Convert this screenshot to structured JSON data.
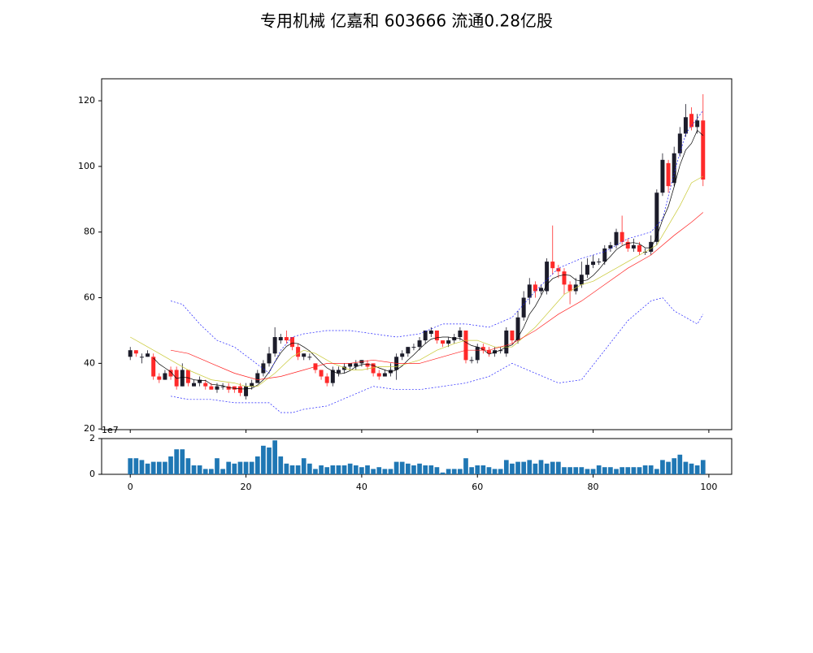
{
  "chart_data": {
    "type": "candlestick",
    "title": "专用机械 亿嘉和 603666 流通0.28亿股",
    "x": [
      0,
      1,
      2,
      3,
      4,
      5,
      6,
      7,
      8,
      9,
      10,
      11,
      12,
      13,
      14,
      15,
      16,
      17,
      18,
      19,
      20,
      21,
      22,
      23,
      24,
      25,
      26,
      27,
      28,
      29,
      30,
      31,
      32,
      33,
      34,
      35,
      36,
      37,
      38,
      39,
      40,
      41,
      42,
      43,
      44,
      45,
      46,
      47,
      48,
      49,
      50,
      51,
      52,
      53,
      54,
      55,
      56,
      57,
      58,
      59,
      60,
      61,
      62,
      63,
      64,
      65,
      66,
      67,
      68,
      69,
      70,
      71,
      72,
      73,
      74,
      75,
      76,
      77,
      78,
      79,
      80,
      81,
      82,
      83,
      84,
      85,
      86,
      87,
      88,
      89,
      90,
      91,
      92,
      93,
      94,
      95,
      96,
      97,
      98,
      99
    ],
    "open": [
      42,
      44,
      42,
      42,
      42,
      36,
      35,
      38,
      38,
      33,
      38,
      33,
      34,
      34,
      33,
      32,
      33,
      33,
      33,
      33,
      30,
      33,
      34,
      37,
      40,
      43,
      47,
      48,
      48,
      45,
      42,
      42,
      40,
      38,
      36,
      34,
      37,
      38,
      39,
      39,
      40,
      40,
      40,
      37,
      36,
      37,
      38,
      42,
      43,
      45,
      45,
      47,
      49,
      50,
      47,
      46,
      47,
      48,
      50,
      41,
      41,
      45,
      44,
      43,
      44,
      43,
      50,
      47,
      54,
      60,
      64,
      62,
      62,
      71,
      69,
      68,
      64,
      62,
      64,
      67,
      70,
      71,
      71,
      75,
      76,
      80,
      77,
      75,
      76,
      74,
      74,
      77,
      92,
      101,
      95,
      104,
      110,
      116,
      112,
      114
    ],
    "high": [
      45,
      44,
      43,
      44,
      43,
      37,
      38,
      39,
      39,
      40,
      38,
      35,
      36,
      35,
      34,
      34,
      34,
      34,
      33,
      34,
      34,
      35,
      38,
      41,
      45,
      51,
      49,
      50,
      48,
      46,
      43,
      43,
      40,
      38,
      37,
      39,
      39,
      40,
      40,
      41,
      41,
      41,
      40,
      38,
      38,
      40,
      43,
      44,
      45,
      46,
      48,
      50,
      51,
      50,
      47,
      48,
      49,
      51,
      50,
      42,
      46,
      46,
      45,
      45,
      45,
      51,
      50,
      56,
      62,
      66,
      65,
      64,
      72,
      82,
      70,
      69,
      65,
      66,
      71,
      72,
      73,
      72,
      76,
      77,
      81,
      85,
      78,
      78,
      77,
      75,
      79,
      93,
      104,
      102,
      106,
      112,
      119,
      118,
      116,
      122
    ],
    "low": [
      41,
      42,
      40,
      42,
      35,
      34,
      35,
      35,
      32,
      33,
      33,
      33,
      33,
      32,
      32,
      31,
      32,
      31,
      31,
      30,
      29,
      32,
      34,
      36,
      39,
      42,
      46,
      46,
      44,
      41,
      41,
      41,
      37,
      35,
      33,
      33,
      36,
      37,
      38,
      38,
      39,
      38,
      36,
      35,
      36,
      36,
      35,
      41,
      42,
      44,
      44,
      46,
      48,
      46,
      45,
      45,
      46,
      47,
      40,
      40,
      40,
      43,
      42,
      42,
      43,
      42,
      46,
      46,
      53,
      58,
      60,
      61,
      61,
      67,
      66,
      61,
      58,
      61,
      63,
      66,
      69,
      70,
      70,
      74,
      75,
      76,
      74,
      74,
      73,
      73,
      73,
      76,
      91,
      92,
      94,
      103,
      109,
      111,
      110,
      94
    ],
    "close": [
      44,
      43,
      42,
      43,
      36,
      35,
      37,
      36,
      33,
      38,
      34,
      34,
      35,
      33,
      32,
      33,
      33,
      32,
      32,
      31,
      33,
      34,
      37,
      40,
      43,
      48,
      48,
      47,
      45,
      42,
      43,
      42,
      38,
      36,
      34,
      38,
      38,
      39,
      40,
      40,
      41,
      39,
      37,
      36,
      37,
      38,
      42,
      43,
      45,
      45,
      47,
      50,
      50,
      47,
      46,
      47,
      48,
      50,
      41,
      41,
      45,
      44,
      43,
      44,
      44,
      50,
      47,
      54,
      60,
      64,
      62,
      63,
      71,
      69,
      68,
      64,
      62,
      64,
      67,
      70,
      71,
      71,
      75,
      76,
      80,
      77,
      75,
      76,
      74,
      74,
      77,
      92,
      102,
      94,
      104,
      110,
      115,
      112,
      114,
      96
    ],
    "up_color": "#1c1c2a",
    "down_color": "#ff2a2a",
    "xlim": [
      -4.95,
      103.95
    ],
    "xticks": [
      0,
      20,
      40,
      60,
      80,
      100
    ],
    "ylim": [
      19.8,
      126.7
    ],
    "yticks": [
      20,
      40,
      60,
      80,
      100,
      120
    ],
    "lines": [
      {
        "color": "#000000",
        "dashed": false,
        "values": [
          null,
          null,
          null,
          null,
          41.6,
          39.8,
          38.6,
          37.4,
          35.4,
          35.8,
          35.6,
          35,
          34.8,
          34.8,
          33.6,
          33.4,
          33.2,
          32.6,
          32.4,
          32.2,
          32.2,
          32.4,
          33.4,
          35,
          37.4,
          40.4,
          43.2,
          45.2,
          46.2,
          46,
          45,
          43.8,
          42,
          40.2,
          38.6,
          37.6,
          36.8,
          37,
          37.8,
          39,
          39.6,
          39.8,
          39.4,
          38.6,
          38,
          37.4,
          38,
          39.2,
          41,
          42.6,
          44.4,
          46,
          47.4,
          47.8,
          48,
          48,
          47.6,
          47.6,
          46.4,
          45.4,
          45,
          44.2,
          42.8,
          43.4,
          44,
          45,
          45.6,
          47.8,
          51,
          55,
          57.4,
          60.6,
          64,
          65.8,
          66.6,
          67,
          66.8,
          65.4,
          65,
          65.4,
          66.8,
          68.6,
          70.8,
          72.6,
          74.6,
          75.8,
          76.6,
          76.8,
          76.4,
          75.2,
          75.2,
          78.6,
          83.8,
          87.8,
          93.8,
          100.4,
          105,
          107,
          111,
          109.4
        ]
      },
      {
        "color": "#c8c832",
        "dashed": false,
        "x": [
          0,
          2,
          5,
          8,
          10,
          14,
          18,
          20,
          22,
          25,
          28,
          30,
          32,
          35,
          38,
          40,
          43,
          46,
          50,
          53,
          56,
          58,
          60,
          63,
          66,
          68,
          70,
          72,
          75,
          78,
          80,
          83,
          86,
          89,
          91,
          93,
          95,
          97,
          99
        ],
        "values": [
          48,
          46,
          43,
          40,
          38,
          35,
          34,
          33,
          33,
          37,
          42,
          44,
          43,
          40,
          38,
          38,
          39,
          39,
          41,
          44,
          46,
          47,
          47,
          45,
          45,
          48,
          51,
          55,
          61,
          64,
          65,
          68,
          71,
          74,
          76,
          82,
          88,
          95,
          97
        ]
      },
      {
        "color": "#ff2020",
        "dashed": false,
        "x": [
          7,
          10,
          14,
          18,
          22,
          26,
          30,
          34,
          38,
          42,
          46,
          50,
          54,
          58,
          62,
          66,
          70,
          74,
          78,
          82,
          86,
          90,
          94,
          97,
          99
        ],
        "values": [
          44,
          43,
          40,
          37,
          35,
          36,
          38,
          40,
          40,
          41,
          40,
          40,
          42,
          44,
          44,
          46,
          50,
          55,
          59,
          64,
          69,
          73,
          79,
          83,
          86
        ]
      },
      {
        "color": "#2020ff",
        "dashed": true,
        "x": [
          7,
          9,
          12,
          15,
          18,
          21,
          24,
          26,
          28,
          30,
          34,
          38,
          42,
          46,
          50,
          54,
          58,
          62,
          66,
          70,
          74,
          78,
          82,
          86,
          90,
          92,
          94,
          96,
          99
        ],
        "values": [
          59,
          58,
          52,
          47,
          45,
          41,
          37,
          44,
          48,
          49,
          50,
          50,
          49,
          48,
          49,
          52,
          52,
          51,
          54,
          62,
          69,
          72,
          74,
          78,
          80,
          84,
          98,
          110,
          117
        ]
      },
      {
        "color": "#2020ff",
        "dashed": true,
        "x": [
          7,
          10,
          14,
          18,
          21,
          24,
          26,
          28,
          30,
          34,
          38,
          42,
          46,
          50,
          54,
          58,
          62,
          66,
          70,
          74,
          78,
          82,
          86,
          90,
          92,
          94,
          96,
          98,
          99
        ],
        "values": [
          30,
          29,
          29,
          28,
          28,
          28,
          25,
          25,
          26,
          27,
          30,
          33,
          32,
          32,
          33,
          34,
          36,
          40,
          37,
          34,
          35,
          44,
          53,
          59,
          60,
          56,
          54,
          52,
          55
        ]
      }
    ],
    "volume": {
      "color": "#1f77b4",
      "ylim": [
        0,
        20000000
      ],
      "yticks": [
        0,
        {
          "value": 20000000,
          "label": "2"
        }
      ],
      "offset_text": "1e7",
      "values": [
        9000000,
        9000000,
        8000000,
        6000000,
        7000000,
        7000000,
        7000000,
        10000000,
        14000000,
        14000000,
        9000000,
        5000000,
        5000000,
        3000000,
        3000000,
        9000000,
        3000000,
        7000000,
        6000000,
        7000000,
        7000000,
        7000000,
        10000000,
        16000000,
        15000000,
        19000000,
        10000000,
        6000000,
        5000000,
        5000000,
        9000000,
        6000000,
        3000000,
        5000000,
        4000000,
        5000000,
        5000000,
        5000000,
        6000000,
        5000000,
        4000000,
        5000000,
        3000000,
        4000000,
        3000000,
        3000000,
        7000000,
        7000000,
        6000000,
        5000000,
        6000000,
        5000000,
        5000000,
        4000000,
        1000000,
        3000000,
        3000000,
        3000000,
        9000000,
        4000000,
        5000000,
        5000000,
        4000000,
        3000000,
        3000000,
        8000000,
        6000000,
        7000000,
        7000000,
        8000000,
        6000000,
        8000000,
        6000000,
        7000000,
        7000000,
        4000000,
        4000000,
        4000000,
        4000000,
        3000000,
        3000000,
        5000000,
        4000000,
        4000000,
        3000000,
        4000000,
        4000000,
        4000000,
        4000000,
        5000000,
        5000000,
        3000000,
        8000000,
        7000000,
        9000000,
        11000000,
        7000000,
        6000000,
        5000000,
        8000000
      ]
    }
  }
}
